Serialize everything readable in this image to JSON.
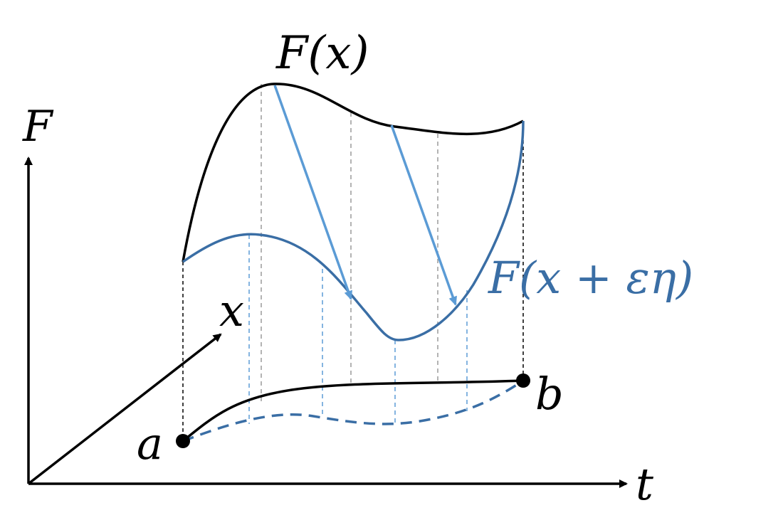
{
  "labels": {
    "f_axis": "F",
    "t_axis": "t",
    "x_axis": "x",
    "point_a": "a",
    "point_b": "b",
    "curve_top": "F(x)",
    "curve_varied": "F(x + εη)"
  },
  "colors": {
    "ink": "#000000",
    "varied": "#3a6ea5",
    "arrow": "#5b9bd5",
    "guide_gray": "#9a9a9a",
    "guide_blue": "#5b9bd5"
  }
}
